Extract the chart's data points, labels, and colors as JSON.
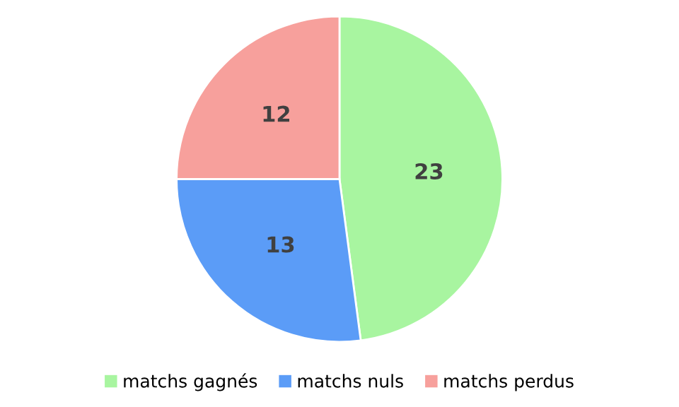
{
  "chart_data": {
    "type": "pie",
    "categories": [
      "matchs gagnés",
      "matchs nuls",
      "matchs perdus"
    ],
    "values": [
      23,
      13,
      12
    ],
    "colors": [
      "#a8f5a0",
      "#5b9cf7",
      "#f7a09c"
    ],
    "data_labels": true,
    "legend": "bottom"
  }
}
